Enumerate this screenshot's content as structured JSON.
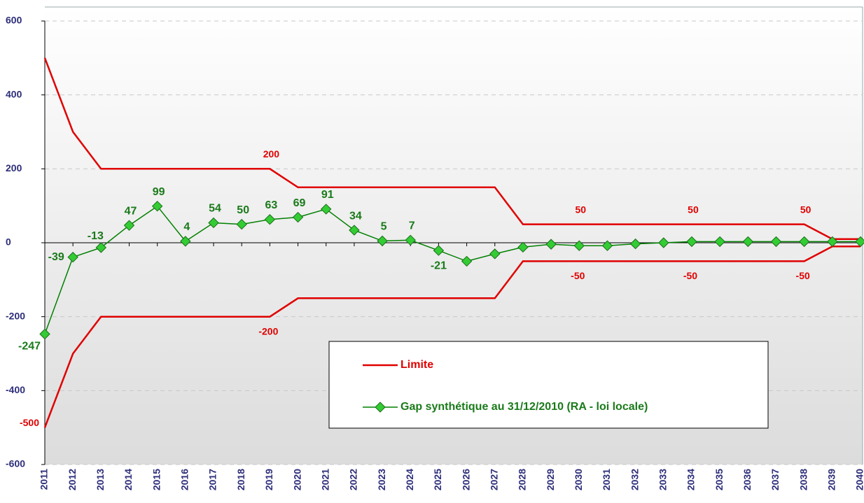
{
  "chart_data": {
    "type": "line",
    "categories": [
      "2011",
      "2012",
      "2013",
      "2014",
      "2015",
      "2016",
      "2017",
      "2018",
      "2019",
      "2020",
      "2021",
      "2022",
      "2023",
      "2024",
      "2025",
      "2026",
      "2027",
      "2028",
      "2029",
      "2030",
      "2031",
      "2032",
      "2033",
      "2034",
      "2035",
      "2036",
      "2037",
      "2038",
      "2039",
      "2040"
    ],
    "ylim": [
      -600,
      600
    ],
    "yticks": [
      -600,
      -400,
      -200,
      0,
      200,
      400,
      600
    ],
    "grid": true,
    "series": [
      {
        "name": "Limite",
        "color": "#e00000",
        "values": [
          500,
          300,
          200,
          200,
          200,
          200,
          200,
          200,
          200,
          150,
          150,
          150,
          150,
          150,
          150,
          150,
          150,
          50,
          50,
          50,
          50,
          50,
          50,
          50,
          50,
          50,
          50,
          50,
          10,
          10
        ],
        "value_labels": [
          null,
          null,
          null,
          null,
          null,
          null,
          null,
          null,
          "200",
          null,
          null,
          null,
          null,
          null,
          null,
          null,
          null,
          null,
          null,
          "50",
          null,
          null,
          null,
          "50",
          null,
          null,
          null,
          "50",
          null,
          null
        ],
        "lower": [
          -500,
          -300,
          -200,
          -200,
          -200,
          -200,
          -200,
          -200,
          -200,
          -150,
          -150,
          -150,
          -150,
          -150,
          -150,
          -150,
          -150,
          -50,
          -50,
          -50,
          -50,
          -50,
          -50,
          -50,
          -50,
          -50,
          -50,
          -50,
          -10,
          -10
        ],
        "lower_labels": [
          "-500",
          null,
          null,
          null,
          null,
          null,
          null,
          null,
          "-200",
          null,
          null,
          null,
          null,
          null,
          null,
          null,
          null,
          null,
          null,
          "-50",
          null,
          null,
          null,
          "-50",
          null,
          null,
          null,
          "-50",
          null,
          null
        ]
      },
      {
        "name": "Gap synthétique au 31/12/2010 (RA - loi locale)",
        "color": "#008000",
        "values": [
          -247,
          -39,
          -13,
          47,
          99,
          4,
          54,
          50,
          63,
          69,
          91,
          34,
          5,
          7,
          -21,
          -50,
          -30,
          -12,
          -4,
          -8,
          -8,
          -3,
          0,
          3,
          3,
          3,
          3,
          3,
          3,
          3
        ],
        "value_labels": [
          "-247",
          "-39",
          "-13",
          "47",
          "99",
          "4",
          "54",
          "50",
          "63",
          "69",
          "91",
          "34",
          "5",
          "7",
          "-21",
          null,
          null,
          null,
          null,
          null,
          null,
          null,
          null,
          null,
          null,
          null,
          null,
          null,
          null,
          null
        ]
      }
    ]
  }
}
